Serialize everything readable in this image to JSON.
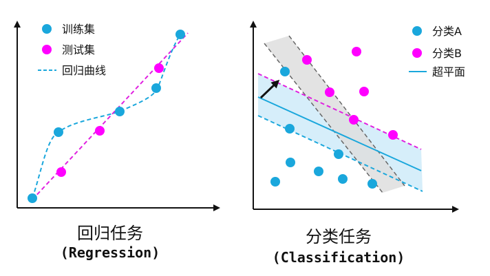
{
  "regression": {
    "legend": {
      "train": "训练集",
      "test": "测试集",
      "curve": "回归曲线"
    },
    "caption_cn": "回归任务",
    "caption_en": "(Regression)",
    "colors": {
      "train": "#1aa7dc",
      "test": "#ff00ff",
      "curve": "#1aa7dc",
      "line": "#e020e0"
    }
  },
  "classification": {
    "legend": {
      "class_a": "分类A",
      "class_b": "分类B",
      "hyperplane": "超平面"
    },
    "caption_cn": "分类任务",
    "caption_en": "(Classification)",
    "colors": {
      "class_a": "#1aa7dc",
      "class_b": "#ff00ff",
      "hyperplane": "#1aa7dc",
      "band": "#d6eefa",
      "gray_band": "#dddddd"
    }
  }
}
